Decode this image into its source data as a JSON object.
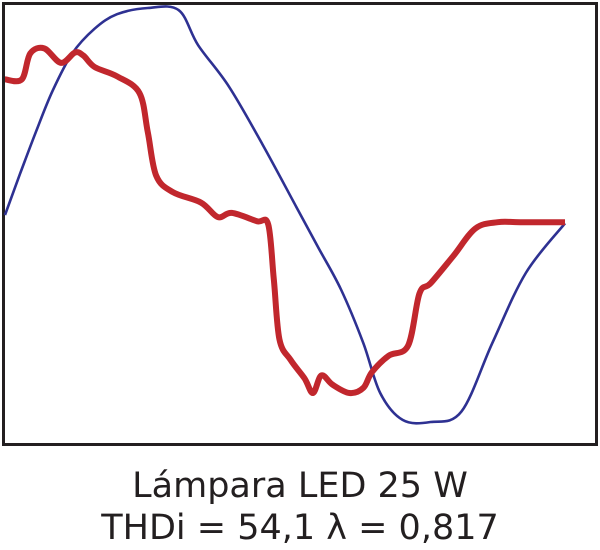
{
  "chart_data": {
    "type": "line",
    "title": "Lámpara LED 25 W",
    "subtitle": "THDi = 54,1 λ = 0,817",
    "xlabel": "",
    "ylabel": "",
    "grid": false,
    "legend": "none",
    "xlim": [
      0,
      1
    ],
    "ylim": [
      -1,
      1
    ],
    "series": [
      {
        "color": "#2e3192",
        "points": [
          [
            0.0,
            0.0
          ],
          [
            0.027,
            0.2
          ],
          [
            0.055,
            0.4
          ],
          [
            0.085,
            0.6
          ],
          [
            0.12,
            0.78
          ],
          [
            0.16,
            0.9
          ],
          [
            0.2,
            0.97
          ],
          [
            0.255,
            1.0
          ],
          [
            0.31,
            0.99
          ],
          [
            0.345,
            0.82
          ],
          [
            0.4,
            0.62
          ],
          [
            0.46,
            0.34
          ],
          [
            0.52,
            0.04
          ],
          [
            0.56,
            -0.16
          ],
          [
            0.6,
            -0.36
          ],
          [
            0.64,
            -0.62
          ],
          [
            0.67,
            -0.86
          ],
          [
            0.71,
            -0.99
          ],
          [
            0.76,
            -1.0
          ],
          [
            0.815,
            -0.95
          ],
          [
            0.87,
            -0.62
          ],
          [
            0.93,
            -0.28
          ],
          [
            1.0,
            -0.04
          ]
        ]
      },
      {
        "color": "#c1272d",
        "points": [
          [
            0.0,
            0.655
          ],
          [
            0.03,
            0.655
          ],
          [
            0.045,
            0.78
          ],
          [
            0.07,
            0.805
          ],
          [
            0.1,
            0.735
          ],
          [
            0.125,
            0.785
          ],
          [
            0.14,
            0.77
          ],
          [
            0.16,
            0.715
          ],
          [
            0.2,
            0.67
          ],
          [
            0.24,
            0.59
          ],
          [
            0.255,
            0.4
          ],
          [
            0.27,
            0.19
          ],
          [
            0.3,
            0.11
          ],
          [
            0.35,
            0.06
          ],
          [
            0.38,
            -0.01
          ],
          [
            0.405,
            0.01
          ],
          [
            0.45,
            -0.03
          ],
          [
            0.47,
            -0.045
          ],
          [
            0.48,
            -0.31
          ],
          [
            0.49,
            -0.6
          ],
          [
            0.51,
            -0.7
          ],
          [
            0.535,
            -0.79
          ],
          [
            0.55,
            -0.86
          ],
          [
            0.565,
            -0.775
          ],
          [
            0.585,
            -0.82
          ],
          [
            0.615,
            -0.86
          ],
          [
            0.64,
            -0.835
          ],
          [
            0.655,
            -0.76
          ],
          [
            0.685,
            -0.68
          ],
          [
            0.72,
            -0.63
          ],
          [
            0.74,
            -0.38
          ],
          [
            0.76,
            -0.33
          ],
          [
            0.8,
            -0.2
          ],
          [
            0.84,
            -0.065
          ],
          [
            0.88,
            -0.035
          ],
          [
            0.92,
            -0.035
          ],
          [
            1.0,
            -0.035
          ]
        ]
      }
    ]
  }
}
